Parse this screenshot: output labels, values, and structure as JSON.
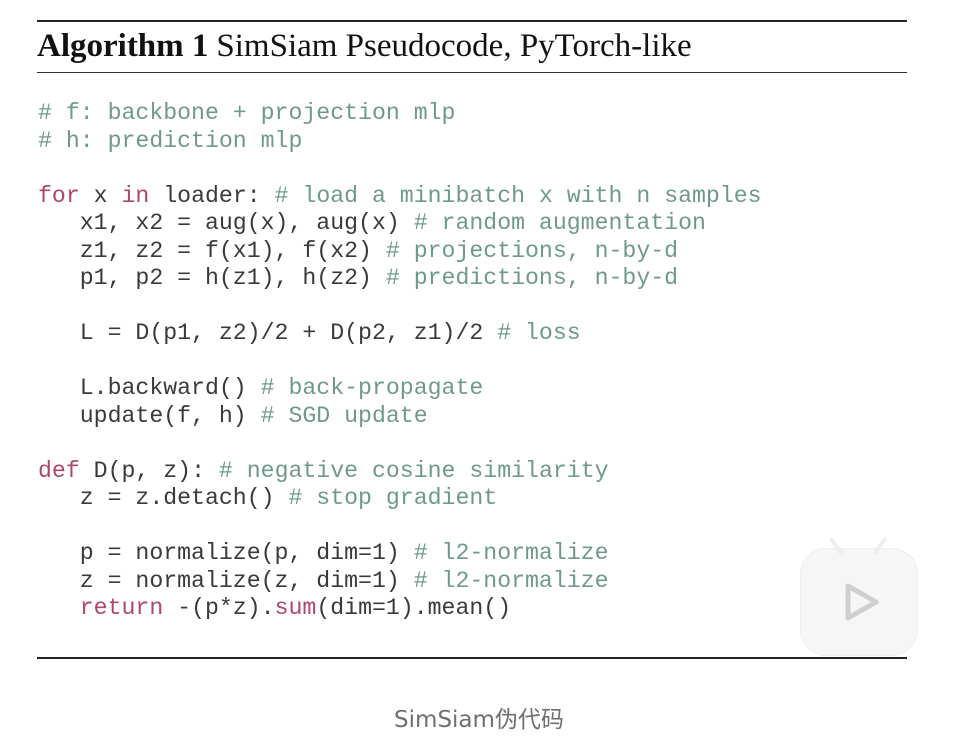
{
  "figure": {
    "title_bold": "Algorithm 1",
    "title_rest": "SimSiam Pseudocode, PyTorch-like",
    "code_lines": [
      [
        {
          "t": "# f: backbone + projection mlp",
          "c": "cm"
        }
      ],
      [
        {
          "t": "# h: prediction mlp",
          "c": "cm"
        }
      ],
      [],
      [
        {
          "t": "for",
          "c": "kw"
        },
        {
          "t": " x "
        },
        {
          "t": "in",
          "c": "kw"
        },
        {
          "t": " loader: "
        },
        {
          "t": "# load a minibatch x with n samples",
          "c": "cm"
        }
      ],
      [
        {
          "t": "   x1, x2 = aug(x), aug(x) "
        },
        {
          "t": "# random augmentation",
          "c": "cm"
        }
      ],
      [
        {
          "t": "   z1, z2 = f(x1), f(x2) "
        },
        {
          "t": "# projections, n-by-d",
          "c": "cm"
        }
      ],
      [
        {
          "t": "   p1, p2 = h(z1), h(z2) "
        },
        {
          "t": "# predictions, n-by-d",
          "c": "cm"
        }
      ],
      [],
      [
        {
          "t": "   L = D(p1, z2)/2 + D(p2, z1)/2 "
        },
        {
          "t": "# loss",
          "c": "cm"
        }
      ],
      [],
      [
        {
          "t": "   L.backward() "
        },
        {
          "t": "# back-propagate",
          "c": "cm"
        }
      ],
      [
        {
          "t": "   update(f, h) "
        },
        {
          "t": "# SGD update",
          "c": "cm"
        }
      ],
      [],
      [
        {
          "t": "def",
          "c": "kw"
        },
        {
          "t": " D(p, z): "
        },
        {
          "t": "# negative cosine similarity",
          "c": "cm"
        }
      ],
      [
        {
          "t": "   z = z.detach() "
        },
        {
          "t": "# stop gradient",
          "c": "cm"
        }
      ],
      [],
      [
        {
          "t": "   p = normalize(p, dim=1) "
        },
        {
          "t": "# l2-normalize",
          "c": "cm"
        }
      ],
      [
        {
          "t": "   z = normalize(z, dim=1) "
        },
        {
          "t": "# l2-normalize",
          "c": "cm"
        }
      ],
      [
        {
          "t": "   "
        },
        {
          "t": "return",
          "c": "kw"
        },
        {
          "t": " -(p*z)."
        },
        {
          "t": "sum",
          "c": "kw"
        },
        {
          "t": "(dim=1).mean()"
        }
      ]
    ]
  },
  "caption": "SimSiam伪代码",
  "icons": {
    "play_badge": "play-icon"
  },
  "colors": {
    "comment": "#6f9a8a",
    "keyword": "#b0476a",
    "code": "#3a3a3a",
    "caption": "#707070"
  }
}
